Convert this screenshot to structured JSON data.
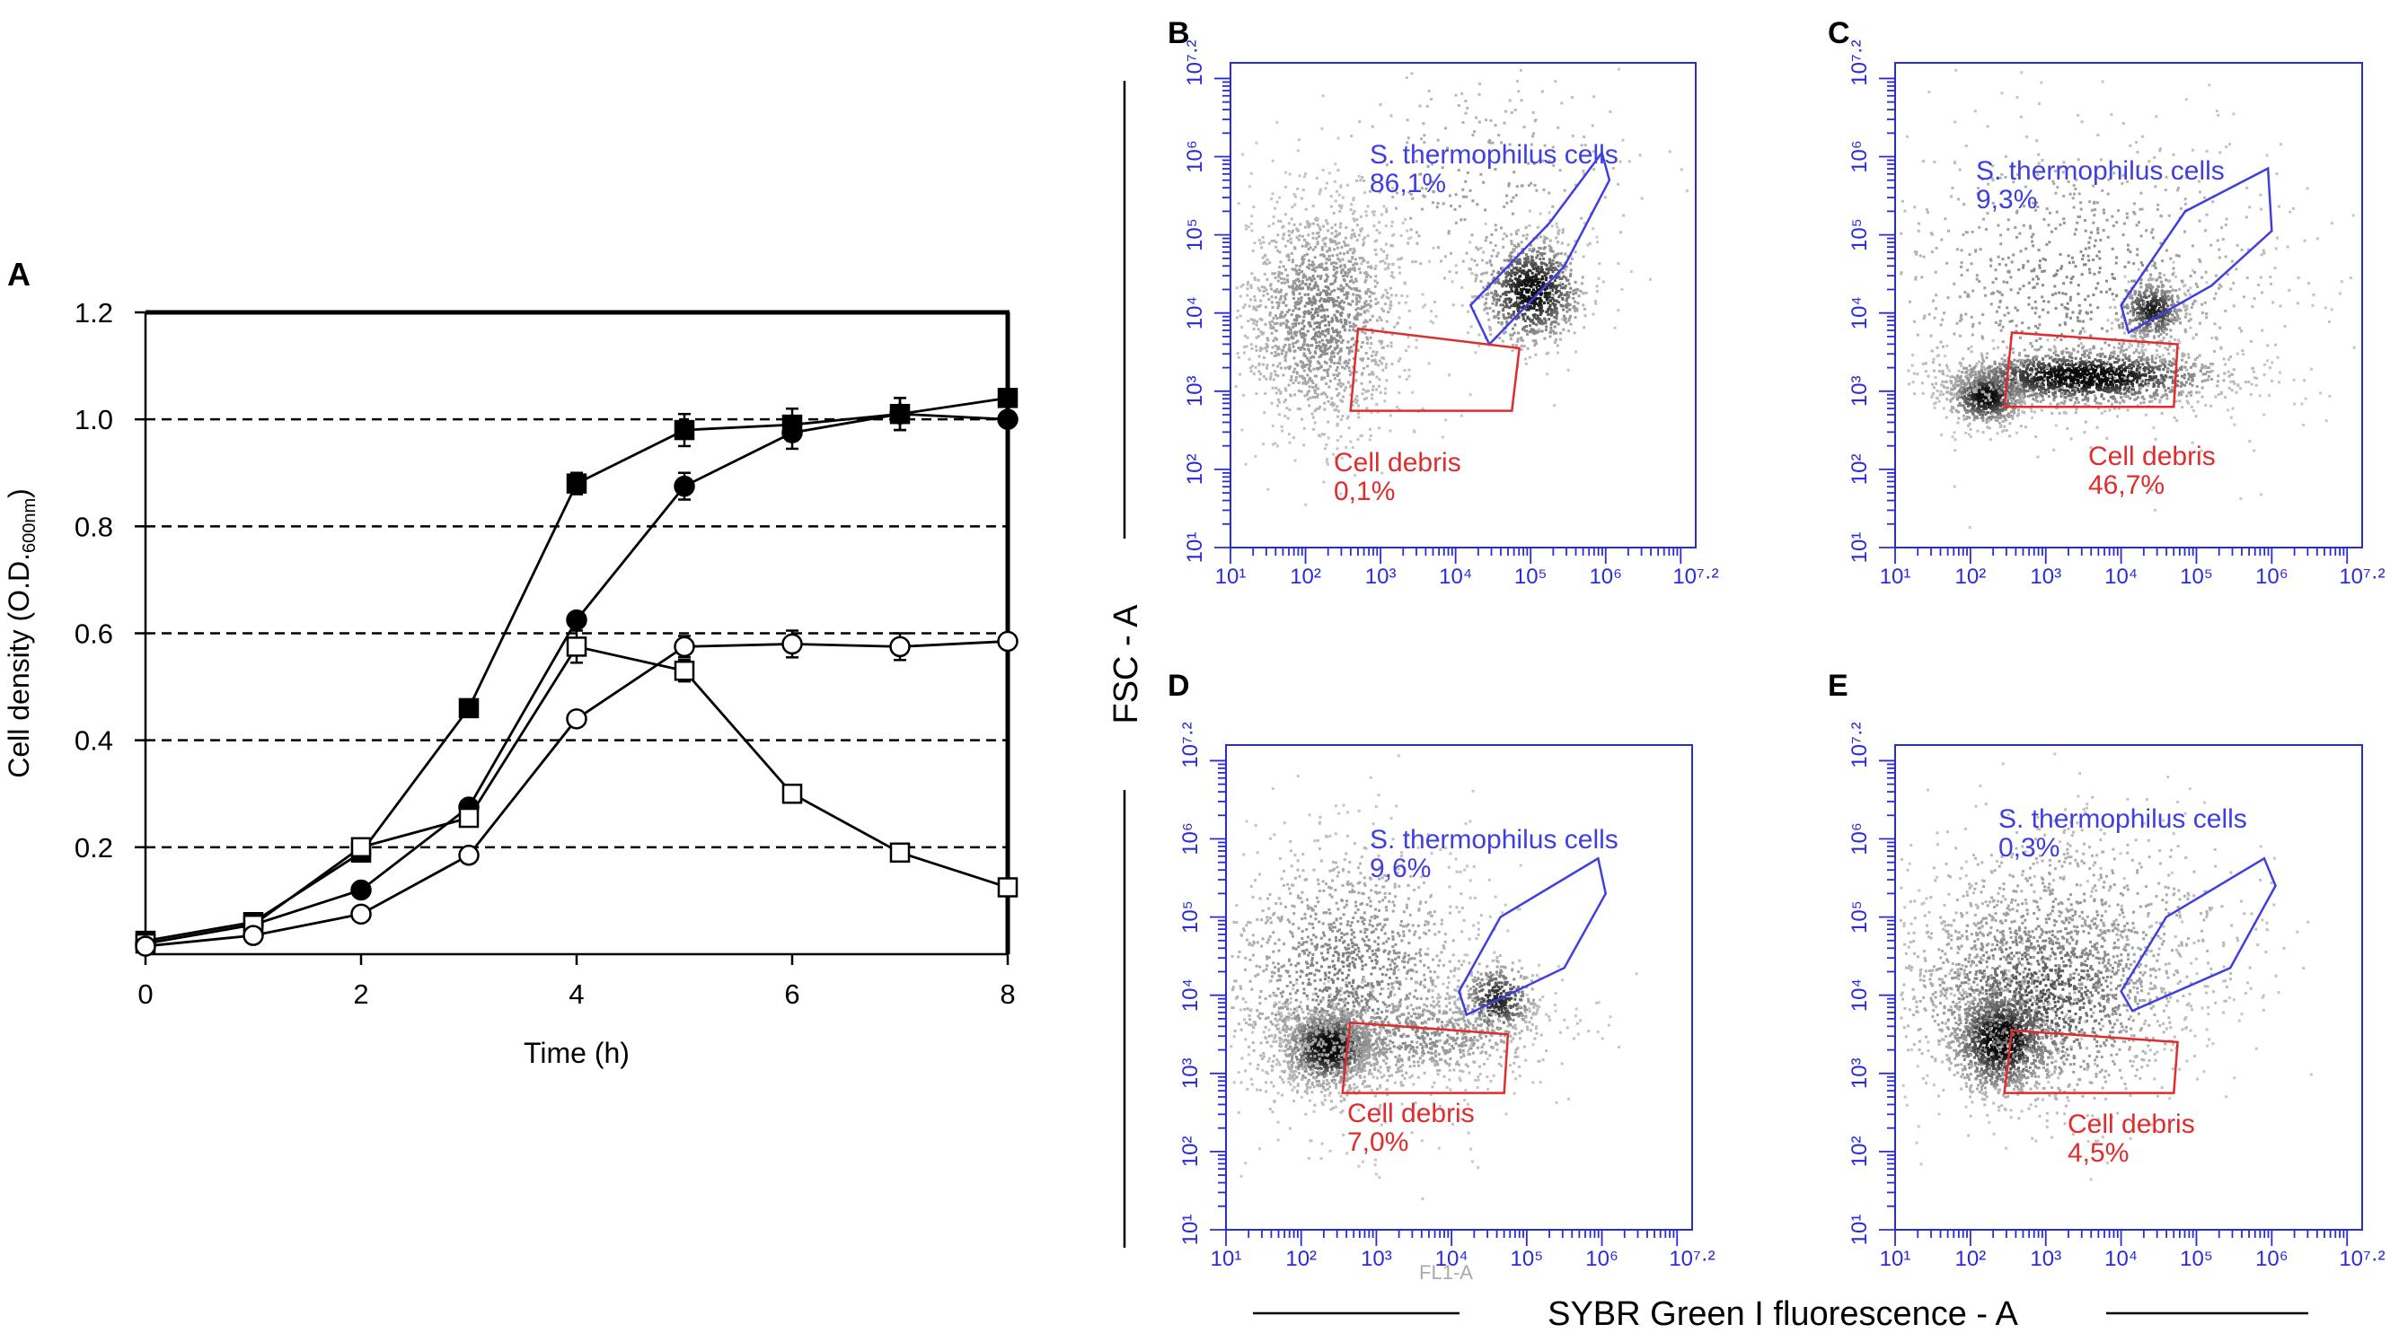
{
  "colors": {
    "axis": "#000000",
    "flow_axis": "#2b2bd6",
    "gate_live": "#3f3fe0",
    "gate_debris": "#e02c2c",
    "density_light": "#bdbdbd",
    "density_dark": "#111111"
  },
  "chart_data": [
    {
      "id": "A",
      "type": "line",
      "panel_label": "A",
      "title": "",
      "xlabel": "Time (h)",
      "ylabel_main": "Cell density (O.D.",
      "ylabel_sub": "600nm",
      "ylabel_close": ")",
      "xlim": [
        0,
        8
      ],
      "ylim": [
        0,
        1.2
      ],
      "xticks": [
        0,
        2,
        4,
        6,
        8
      ],
      "xtick_labels": [
        "0",
        "2",
        "4",
        "6",
        "8"
      ],
      "yticks": [
        0.2,
        0.4,
        0.6,
        0.8,
        1.0,
        1.2
      ],
      "ytick_labels": [
        "0.2",
        "0.4",
        "0.6",
        "0.8",
        "1.0",
        "1.2"
      ],
      "gridlines_dashed_y": [
        0.2,
        0.4,
        0.6,
        0.8,
        1.0
      ],
      "series": [
        {
          "name": "filled squares",
          "marker": "square",
          "fill": "filled",
          "x": [
            0,
            1,
            2,
            3,
            4,
            5,
            6,
            7,
            8
          ],
          "y": [
            0.025,
            0.06,
            0.19,
            0.46,
            0.88,
            0.98,
            0.99,
            1.01,
            1.04
          ],
          "err": [
            0,
            0,
            0,
            0,
            0.02,
            0.03,
            0.03,
            0.03,
            0
          ]
        },
        {
          "name": "filled circles",
          "marker": "circle",
          "fill": "filled",
          "x": [
            0,
            1,
            2,
            3,
            4,
            5,
            6,
            7,
            8
          ],
          "y": [
            0.02,
            0.055,
            0.12,
            0.275,
            0.625,
            0.875,
            0.975,
            1.01,
            1.0
          ],
          "err": [
            0,
            0,
            0,
            0,
            0,
            0.025,
            0.03,
            0.03,
            0
          ]
        },
        {
          "name": "open squares",
          "marker": "square",
          "fill": "open",
          "x": [
            0,
            1,
            2,
            3,
            4,
            5,
            6,
            7,
            8
          ],
          "y": [
            0.02,
            0.055,
            0.2,
            0.255,
            0.575,
            0.53,
            0.3,
            0.19,
            0.125
          ],
          "err": [
            0,
            0,
            0,
            0,
            0.03,
            0.02,
            0,
            0,
            0
          ]
        },
        {
          "name": "open circles",
          "marker": "circle",
          "fill": "open",
          "x": [
            0,
            1,
            2,
            3,
            4,
            5,
            6,
            7,
            8
          ],
          "y": [
            0.015,
            0.035,
            0.075,
            0.185,
            0.44,
            0.575,
            0.58,
            0.575,
            0.585
          ],
          "err": [
            0,
            0,
            0,
            0,
            0,
            0.02,
            0.025,
            0.025,
            0
          ]
        }
      ]
    },
    {
      "id": "B",
      "type": "scatter",
      "subtype": "flow cytometry density plot",
      "panel_label": "B",
      "xlim_log": [
        1,
        7.2
      ],
      "ylim_log": [
        1,
        7.2
      ],
      "x_tick_labels": [
        "10^1",
        "10^2",
        "10^3",
        "10^4",
        "10^5",
        "10^6",
        "10^7.2"
      ],
      "y_tick_labels": [
        "10^1",
        "10^2",
        "10^3",
        "10^4",
        "10^5",
        "10^6",
        "10^7.2"
      ],
      "gates": [
        {
          "name": "S. thermophilus cells",
          "percent": "86,1%",
          "vertices": [
            [
              4.45,
              3.6
            ],
            [
              5.45,
              4.6
            ],
            [
              6.05,
              5.7
            ],
            [
              5.95,
              6.05
            ],
            [
              5.25,
              5.15
            ],
            [
              4.2,
              4.1
            ]
          ]
        },
        {
          "name": "Cell debris",
          "percent": "0,1%",
          "vertices": [
            [
              2.7,
              3.8
            ],
            [
              4.85,
              3.55
            ],
            [
              4.75,
              2.75
            ],
            [
              2.6,
              2.75
            ]
          ]
        }
      ],
      "clusters": [
        {
          "cx": 2.2,
          "cy": 4.0,
          "sx": 0.55,
          "sy": 0.75,
          "weight": 1.0,
          "intensity": 0.32
        },
        {
          "cx": 5.0,
          "cy": 4.3,
          "sx": 0.35,
          "sy": 0.35,
          "weight": 0.6,
          "intensity": 0.9
        },
        {
          "cx": 4.3,
          "cy": 5.6,
          "sx": 1.1,
          "sy": 0.8,
          "weight": 0.18,
          "intensity": 0.2
        }
      ]
    },
    {
      "id": "C",
      "type": "scatter",
      "subtype": "flow cytometry density plot",
      "panel_label": "C",
      "xlim_log": [
        1,
        7.2
      ],
      "ylim_log": [
        1,
        7.2
      ],
      "x_tick_labels": [
        "10^1",
        "10^2",
        "10^3",
        "10^4",
        "10^5",
        "10^6",
        "10^7.2"
      ],
      "y_tick_labels": [
        "10^1",
        "10^2",
        "10^3",
        "10^4",
        "10^5",
        "10^6",
        "10^7.2"
      ],
      "gates": [
        {
          "name": "S. thermophilus cells",
          "percent": "9,3%",
          "vertices": [
            [
              4.1,
              3.75
            ],
            [
              5.2,
              4.35
            ],
            [
              6.0,
              5.05
            ],
            [
              5.95,
              5.85
            ],
            [
              4.85,
              5.3
            ],
            [
              4.0,
              4.1
            ]
          ]
        },
        {
          "name": "Cell debris",
          "percent": "46,7%",
          "vertices": [
            [
              2.55,
              3.75
            ],
            [
              4.75,
              3.6
            ],
            [
              4.7,
              2.8
            ],
            [
              2.45,
              2.8
            ]
          ]
        }
      ],
      "clusters": [
        {
          "cx": 2.2,
          "cy": 2.95,
          "sx": 0.25,
          "sy": 0.18,
          "weight": 0.5,
          "intensity": 0.95
        },
        {
          "cx": 3.5,
          "cy": 3.2,
          "sx": 0.9,
          "sy": 0.18,
          "weight": 1.0,
          "intensity": 1.0
        },
        {
          "cx": 4.4,
          "cy": 4.05,
          "sx": 0.22,
          "sy": 0.2,
          "weight": 0.3,
          "intensity": 0.8
        },
        {
          "cx": 3.4,
          "cy": 4.4,
          "sx": 1.4,
          "sy": 1.0,
          "weight": 0.6,
          "intensity": 0.3
        }
      ]
    },
    {
      "id": "D",
      "type": "scatter",
      "subtype": "flow cytometry density plot",
      "panel_label": "D",
      "xlim_log": [
        1,
        7.2
      ],
      "ylim_log": [
        1,
        7.2
      ],
      "x_tick_labels": [
        "10^1",
        "10^2",
        "10^3",
        "10^4",
        "10^5",
        "10^6",
        "10^7.2"
      ],
      "y_tick_labels": [
        "10^1",
        "10^2",
        "10^3",
        "10^4",
        "10^5",
        "10^6",
        "10^7.2"
      ],
      "gates": [
        {
          "name": "S. thermophilus cells",
          "percent": "9,6%",
          "vertices": [
            [
              4.2,
              3.75
            ],
            [
              5.5,
              4.35
            ],
            [
              6.05,
              5.3
            ],
            [
              5.95,
              5.75
            ],
            [
              4.65,
              5.0
            ],
            [
              4.1,
              4.05
            ]
          ]
        },
        {
          "name": "Cell debris",
          "percent": "7,0%",
          "vertices": [
            [
              2.65,
              3.65
            ],
            [
              4.75,
              3.5
            ],
            [
              4.7,
              2.75
            ],
            [
              2.55,
              2.75
            ]
          ]
        }
      ],
      "clusters": [
        {
          "cx": 2.35,
          "cy": 3.35,
          "sx": 0.3,
          "sy": 0.25,
          "weight": 0.8,
          "intensity": 1.0
        },
        {
          "cx": 2.6,
          "cy": 4.2,
          "sx": 0.9,
          "sy": 0.9,
          "weight": 1.0,
          "intensity": 0.35
        },
        {
          "cx": 4.6,
          "cy": 3.95,
          "sx": 0.25,
          "sy": 0.25,
          "weight": 0.25,
          "intensity": 0.75
        },
        {
          "cx": 3.4,
          "cy": 3.5,
          "sx": 1.0,
          "sy": 0.3,
          "weight": 0.5,
          "intensity": 0.3
        }
      ]
    },
    {
      "id": "E",
      "type": "scatter",
      "subtype": "flow cytometry density plot",
      "panel_label": "E",
      "xlim_log": [
        1,
        7.2
      ],
      "ylim_log": [
        1,
        7.2
      ],
      "x_tick_labels": [
        "10^1",
        "10^2",
        "10^3",
        "10^4",
        "10^5",
        "10^6",
        "10^7.2"
      ],
      "y_tick_labels": [
        "10^1",
        "10^2",
        "10^3",
        "10^4",
        "10^5",
        "10^6",
        "10^7.2"
      ],
      "gates": [
        {
          "name": "S. thermophilus cells",
          "percent": "0,3%",
          "vertices": [
            [
              4.15,
              3.8
            ],
            [
              5.45,
              4.35
            ],
            [
              6.05,
              5.4
            ],
            [
              5.9,
              5.75
            ],
            [
              4.6,
              5.0
            ],
            [
              4.0,
              4.05
            ]
          ]
        },
        {
          "name": "Cell debris",
          "percent": "4,5%",
          "vertices": [
            [
              2.55,
              3.55
            ],
            [
              4.75,
              3.4
            ],
            [
              4.7,
              2.75
            ],
            [
              2.45,
              2.75
            ]
          ]
        }
      ],
      "clusters": [
        {
          "cx": 2.4,
          "cy": 3.45,
          "sx": 0.35,
          "sy": 0.35,
          "weight": 0.9,
          "intensity": 1.0
        },
        {
          "cx": 2.9,
          "cy": 4.0,
          "sx": 0.9,
          "sy": 0.7,
          "weight": 1.0,
          "intensity": 0.55
        },
        {
          "cx": 3.3,
          "cy": 4.8,
          "sx": 1.3,
          "sy": 0.8,
          "weight": 0.5,
          "intensity": 0.25
        }
      ]
    }
  ],
  "shared_labels": {
    "y_axis": "FSC - A",
    "x_axis": "SYBR Green I fluorescence - A",
    "partial_axis_text": "FL1-A"
  }
}
